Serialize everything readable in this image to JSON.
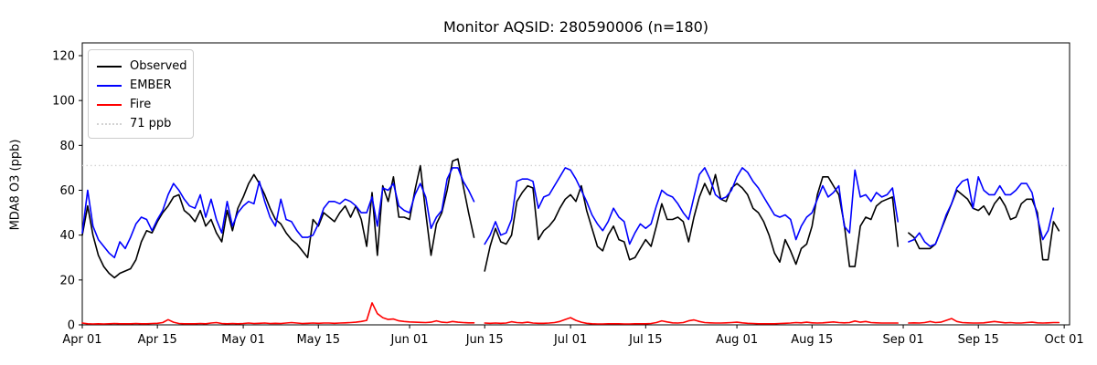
{
  "title": "Monitor AQSID: 280590006 (n=180)",
  "axes": {
    "ylabel": "MDA8 O3 (ppb)",
    "yticks": [
      0,
      20,
      40,
      60,
      80,
      100,
      120
    ],
    "ylim": [
      0,
      126
    ],
    "xtick_labels": [
      "Apr 01",
      "Apr 15",
      "May 01",
      "May 15",
      "Jun 01",
      "Jun 15",
      "Jul 01",
      "Jul 15",
      "Aug 01",
      "Aug 15",
      "Sep 01",
      "Sep 15",
      "Oct 01"
    ],
    "xtick_days": [
      0,
      14,
      30,
      44,
      61,
      75,
      91,
      105,
      122,
      136,
      153,
      167,
      183
    ],
    "xlim_days": [
      0,
      184
    ]
  },
  "legend": {
    "items": [
      {
        "label": "Observed",
        "color": "#000000",
        "style": "solid"
      },
      {
        "label": "EMBER",
        "color": "#0000ff",
        "style": "solid"
      },
      {
        "label": "Fire",
        "color": "#ff0000",
        "style": "solid"
      },
      {
        "label": "71 ppb",
        "color": "#d3d3d3",
        "style": "dotted"
      }
    ]
  },
  "chart_data": {
    "type": "line",
    "title": "Monitor AQSID: 280590006 (n=180)",
    "xlabel": "",
    "ylabel": "MDA8 O3 (ppb)",
    "x_unit": "days since Apr 01 (daily values, Apr 01 - Sep 30; null = missing day)",
    "x_range_days": [
      0,
      182
    ],
    "ylim": [
      0,
      126
    ],
    "grid": false,
    "legend_position": "upper left",
    "threshold": {
      "value": 71,
      "label": "71 ppb",
      "color": "#d3d3d3",
      "linestyle": "dotted"
    },
    "n_points": 180,
    "series": [
      {
        "name": "Observed",
        "color": "#000000",
        "values": [
          40,
          53,
          40,
          31,
          26,
          23,
          21,
          23,
          24,
          25,
          29,
          37,
          42,
          41,
          46,
          50,
          53,
          57,
          58,
          51,
          49,
          46,
          51,
          44,
          47,
          41,
          37,
          51,
          42,
          52,
          57,
          63,
          67,
          63,
          58,
          52,
          47,
          45,
          41,
          38,
          36,
          33,
          30,
          47,
          44,
          50,
          48,
          46,
          50,
          53,
          48,
          53,
          47,
          35,
          59,
          31,
          62,
          55,
          66,
          48,
          48,
          47,
          60,
          71,
          50,
          31,
          45,
          50,
          60,
          73,
          74,
          62,
          50,
          39,
          null,
          24,
          35,
          43,
          37,
          36,
          40,
          55,
          59,
          62,
          61,
          38,
          42,
          44,
          47,
          52,
          56,
          58,
          55,
          62,
          51,
          43,
          35,
          33,
          40,
          44,
          38,
          37,
          29,
          30,
          34,
          38,
          35,
          44,
          54,
          47,
          47,
          48,
          46,
          37,
          48,
          57,
          63,
          58,
          67,
          56,
          55,
          61,
          63,
          61,
          58,
          52,
          50,
          46,
          40,
          32,
          28,
          38,
          33,
          27,
          34,
          36,
          44,
          58,
          66,
          66,
          62,
          58,
          45,
          26,
          26,
          44,
          48,
          47,
          53,
          55,
          56,
          57,
          35,
          null,
          41,
          39,
          34,
          34,
          34,
          36,
          42,
          48,
          54,
          60,
          58,
          56,
          52,
          51,
          53,
          49,
          54,
          57,
          53,
          47,
          48,
          54,
          56,
          56,
          50,
          29,
          29,
          46,
          42
        ]
      },
      {
        "name": "EMBER",
        "color": "#0000ff",
        "values": [
          41,
          60,
          44,
          38,
          35,
          32,
          30,
          37,
          34,
          39,
          45,
          48,
          47,
          42,
          47,
          51,
          58,
          63,
          60,
          56,
          53,
          52,
          58,
          48,
          56,
          47,
          41,
          55,
          44,
          50,
          53,
          55,
          54,
          64,
          55,
          48,
          44,
          56,
          47,
          46,
          42,
          39,
          39,
          40,
          45,
          52,
          55,
          55,
          54,
          56,
          55,
          53,
          50,
          50,
          57,
          44,
          61,
          60,
          63,
          53,
          51,
          50,
          58,
          63,
          57,
          43,
          48,
          51,
          65,
          70,
          70,
          64,
          60,
          55,
          null,
          36,
          40,
          46,
          40,
          41,
          47,
          64,
          65,
          65,
          64,
          52,
          57,
          58,
          62,
          66,
          70,
          69,
          65,
          60,
          55,
          49,
          45,
          42,
          46,
          52,
          48,
          46,
          36,
          41,
          45,
          43,
          45,
          53,
          60,
          58,
          57,
          54,
          50,
          47,
          57,
          67,
          70,
          65,
          58,
          56,
          57,
          60,
          66,
          70,
          68,
          64,
          61,
          57,
          53,
          49,
          48,
          49,
          47,
          38,
          44,
          48,
          50,
          56,
          62,
          57,
          59,
          62,
          44,
          41,
          69,
          57,
          58,
          55,
          59,
          57,
          58,
          61,
          46,
          null,
          37,
          38,
          41,
          37,
          35,
          36,
          42,
          49,
          54,
          61,
          64,
          65,
          52,
          66,
          60,
          58,
          58,
          62,
          58,
          58,
          60,
          63,
          63,
          59,
          48,
          38,
          42,
          52,
          null
        ]
      },
      {
        "name": "Fire",
        "color": "#ff0000",
        "values": [
          0.8,
          0.5,
          0.4,
          0.5,
          0.4,
          0.5,
          0.6,
          0.5,
          0.5,
          0.5,
          0.6,
          0.5,
          0.5,
          0.6,
          0.7,
          1.0,
          2.3,
          1.2,
          0.6,
          0.5,
          0.5,
          0.5,
          0.6,
          0.5,
          0.8,
          1.0,
          0.6,
          0.5,
          0.6,
          0.5,
          0.6,
          0.8,
          0.6,
          0.7,
          0.8,
          0.6,
          0.7,
          0.6,
          0.8,
          1.0,
          0.8,
          0.6,
          0.7,
          0.8,
          0.7,
          0.8,
          0.8,
          0.7,
          0.8,
          0.9,
          1.0,
          1.2,
          1.5,
          2.0,
          9.8,
          5.0,
          3.2,
          2.4,
          2.6,
          1.8,
          1.5,
          1.3,
          1.2,
          1.1,
          1.0,
          1.2,
          1.8,
          1.2,
          1.0,
          1.5,
          1.2,
          1.0,
          0.9,
          0.9,
          null,
          0.8,
          0.7,
          0.8,
          0.7,
          0.8,
          1.4,
          1.0,
          0.9,
          1.2,
          0.8,
          0.7,
          0.7,
          0.8,
          1.0,
          1.5,
          2.4,
          3.2,
          2.0,
          1.2,
          0.7,
          0.5,
          0.4,
          0.4,
          0.5,
          0.5,
          0.5,
          0.4,
          0.4,
          0.5,
          0.5,
          0.5,
          0.6,
          1.0,
          1.8,
          1.3,
          0.9,
          0.8,
          1.0,
          1.8,
          2.2,
          1.5,
          1.0,
          0.9,
          0.8,
          0.8,
          0.9,
          1.0,
          1.2,
          0.9,
          0.7,
          0.6,
          0.5,
          0.5,
          0.5,
          0.5,
          0.6,
          0.7,
          0.8,
          1.0,
          0.9,
          1.2,
          0.9,
          0.8,
          0.9,
          1.1,
          1.3,
          1.0,
          0.9,
          1.0,
          1.7,
          1.2,
          1.5,
          1.0,
          0.9,
          0.8,
          0.8,
          0.8,
          0.8,
          null,
          0.8,
          0.9,
          0.8,
          1.0,
          1.5,
          1.0,
          1.2,
          2.0,
          2.8,
          1.5,
          1.0,
          0.9,
          0.8,
          0.8,
          0.9,
          1.2,
          1.5,
          1.2,
          0.9,
          1.0,
          0.8,
          0.8,
          1.0,
          1.2,
          0.9,
          0.8,
          0.9,
          1.0,
          1.0
        ]
      }
    ]
  }
}
